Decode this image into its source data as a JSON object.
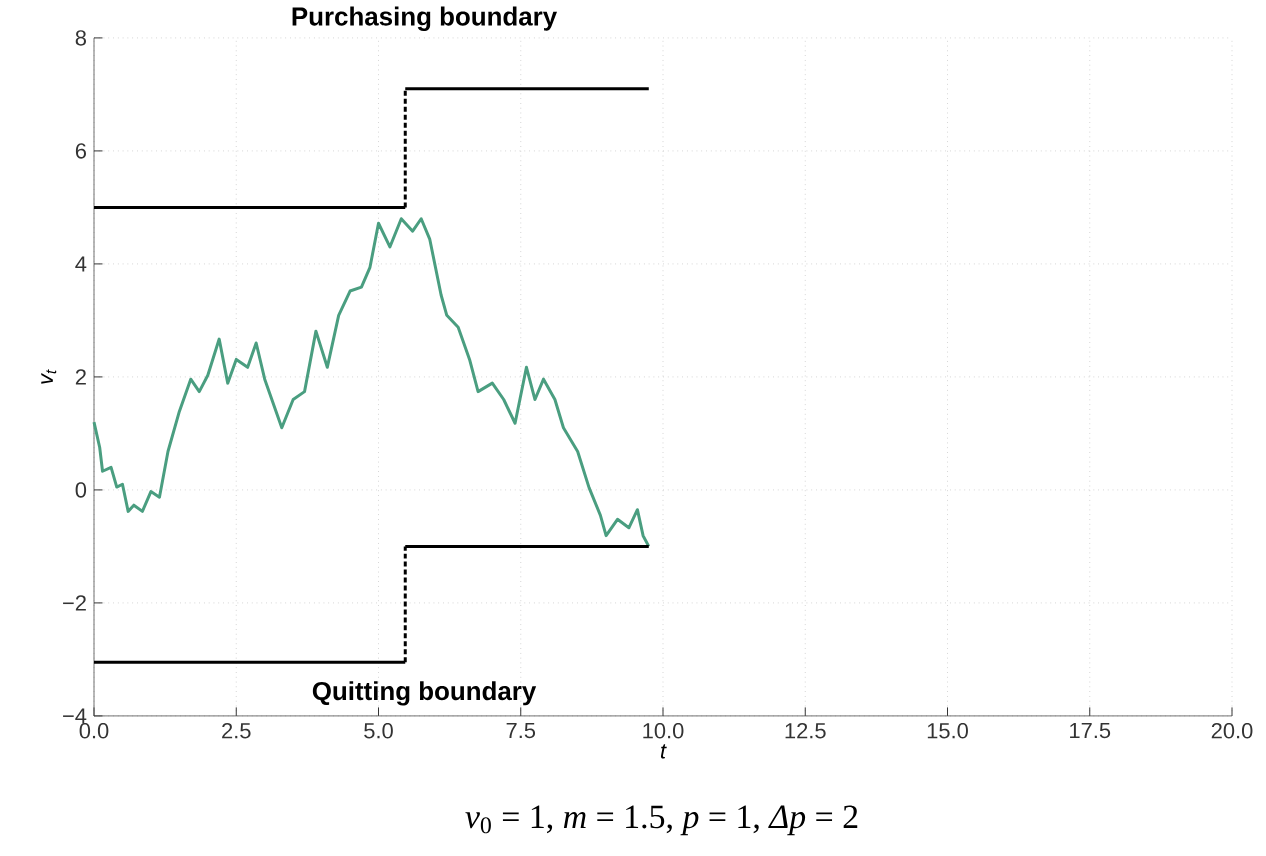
{
  "chart_data": {
    "type": "line",
    "xlabel": "t",
    "ylabel": "v$_{t}$",
    "xlim": [
      0,
      20
    ],
    "ylim": [
      -4,
      8
    ],
    "xticks": [
      {
        "value": 0,
        "label": "0.0"
      },
      2.5,
      {
        "value": 5,
        "label": "5.0"
      },
      7.5,
      {
        "value": 10,
        "label": "10.0"
      },
      12.5,
      {
        "value": 15,
        "label": "15.0"
      },
      17.5,
      {
        "value": 20,
        "label": "20.0"
      }
    ],
    "yticks": [
      {
        "value": -4,
        "label": "−4"
      },
      {
        "value": -2,
        "label": "−2"
      },
      0,
      2,
      4,
      6,
      8
    ],
    "grid": true,
    "line_style": "solid",
    "annotations": [
      "Purchasing boundary",
      "Quitting boundary",
      "*v*$_{0}$ = 1, *m* = 1.5, *p* = 1, *Δp* = 2"
    ],
    "series": [
      {
        "color": "#4a9e80",
        "x": [
          0,
          0.1,
          0.15,
          0.3,
          0.4,
          0.5,
          0.6,
          0.7,
          0.85,
          1.0,
          1.15,
          1.3,
          1.5,
          1.7,
          1.85,
          2.0,
          2.2,
          2.35,
          2.5,
          2.7,
          2.85,
          3.0,
          3.3,
          3.5,
          3.7,
          3.9,
          4.1,
          4.3,
          4.5,
          4.7,
          4.85,
          5.0,
          5.2,
          5.4,
          5.6,
          5.75,
          5.9,
          6.1,
          6.2,
          6.4,
          6.6,
          6.75,
          7.0,
          7.2,
          7.4,
          7.6,
          7.75,
          7.9,
          8.1,
          8.25,
          8.5,
          8.7,
          8.9,
          9.0,
          9.2,
          9.4,
          9.55,
          9.65,
          9.75
        ],
        "values": [
          1.2,
          0.75,
          0.33,
          0.4,
          0.05,
          0.1,
          -0.38,
          -0.27,
          -0.38,
          -0.03,
          -0.13,
          0.68,
          1.39,
          1.96,
          1.74,
          2.03,
          2.67,
          1.89,
          2.31,
          2.17,
          2.6,
          1.96,
          1.1,
          1.6,
          1.74,
          2.81,
          2.17,
          3.09,
          3.52,
          3.59,
          3.94,
          4.72,
          4.3,
          4.8,
          4.58,
          4.8,
          4.44,
          3.45,
          3.09,
          2.88,
          2.31,
          1.74,
          1.89,
          1.6,
          1.18,
          2.17,
          1.6,
          1.96,
          1.6,
          1.1,
          0.68,
          0.04,
          -0.45,
          -0.81,
          -0.52,
          -0.67,
          -0.35,
          -0.81,
          -1.0
        ]
      },
      {
        "color": "#000000",
        "x": [
          0,
          5.47
        ],
        "values": [
          5,
          5
        ]
      },
      {
        "color": "#000000",
        "x": [
          5.47,
          5.47
        ],
        "values": [
          5,
          7.1
        ],
        "line_style": "dashed"
      },
      {
        "color": "#000000",
        "x": [
          5.47,
          9.75
        ],
        "values": [
          7.1,
          7.1
        ]
      },
      {
        "color": "#000000",
        "x": [
          0,
          5.47
        ],
        "values": [
          -3.05,
          -3.05
        ]
      },
      {
        "color": "#000000",
        "x": [
          5.47,
          5.47
        ],
        "values": [
          -3.05,
          -1
        ],
        "line_style": "dashed"
      },
      {
        "color": "#000000",
        "x": [
          5.47,
          9.75
        ],
        "values": [
          -1,
          -1
        ]
      }
    ]
  }
}
